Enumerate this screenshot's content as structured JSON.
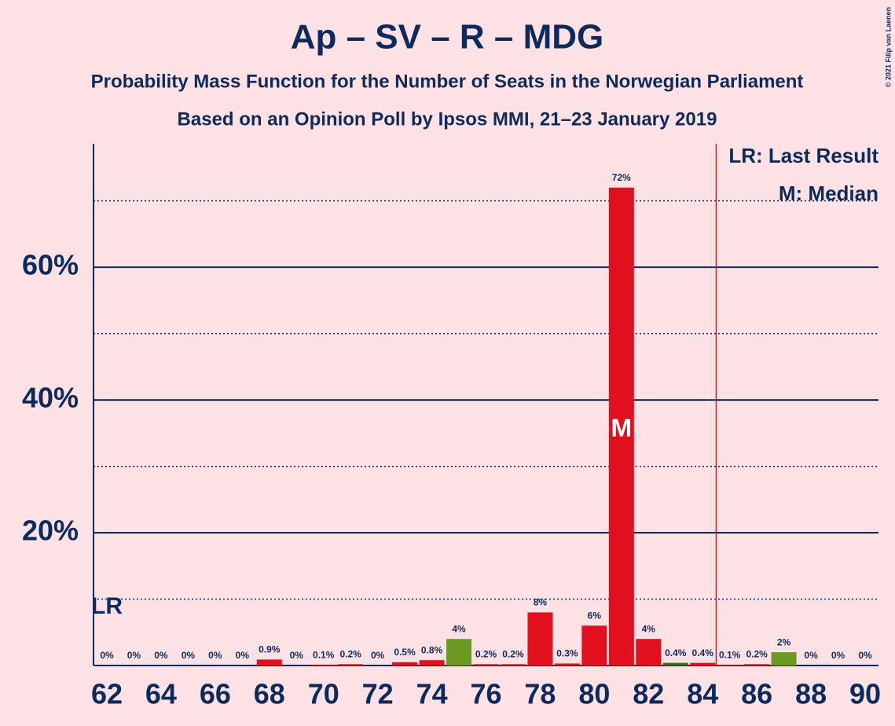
{
  "chart_data": {
    "type": "bar",
    "title": "Ap – SV – R – MDG",
    "subtitle": "Probability Mass Function for the Number of Seats in the Norwegian Parliament",
    "subtitle2": "Based on an Opinion Poll by Ipsos MMI, 21–23 January 2019",
    "copyright": "© 2021 Filip van Laenen",
    "categories": [
      62,
      null,
      64,
      null,
      66,
      null,
      68,
      null,
      70,
      null,
      72,
      null,
      74,
      null,
      76,
      null,
      78,
      null,
      80,
      null,
      82,
      null,
      84,
      null,
      86,
      null,
      88,
      null,
      90
    ],
    "values": [
      0,
      0,
      0,
      0,
      0,
      0,
      0.9,
      0,
      0.1,
      0.2,
      0,
      0.5,
      0.8,
      4,
      0.2,
      0.2,
      8,
      0.3,
      6,
      72,
      4,
      0.4,
      0.4,
      0.1,
      0.2,
      2,
      0,
      0,
      0
    ],
    "value_labels": [
      "0%",
      "0%",
      "0%",
      "0%",
      "0%",
      "0%",
      "0.9%",
      "0%",
      "0.1%",
      "0.2%",
      "0%",
      "0.5%",
      "0.8%",
      "4%",
      "0.2%",
      "0.2%",
      "8%",
      "0.3%",
      "6%",
      "72%",
      "4%",
      "0.4%",
      "0.4%",
      "0.1%",
      "0.2%",
      "2%",
      "0%",
      "0%",
      "0%"
    ],
    "colors": [
      "#e0101f",
      "#e0101f",
      "#e0101f",
      "#e0101f",
      "#e0101f",
      "#e0101f",
      "#e0101f",
      "#e0101f",
      "#e0101f",
      "#e0101f",
      "#e0101f",
      "#e0101f",
      "#e0101f",
      "#6a9a1f",
      "#e0101f",
      "#e0101f",
      "#e0101f",
      "#e0101f",
      "#e0101f",
      "#e0101f",
      "#e0101f",
      "#3f6a1a",
      "#e0101f",
      "#e0101f",
      "#e0101f",
      "#6a9a1f",
      "#e0101f",
      "#e0101f",
      "#e0101f"
    ],
    "ylim": [
      0,
      78.6
    ],
    "yticks": [
      {
        "value": 20,
        "label": "20%"
      },
      {
        "value": 40,
        "label": "40%"
      },
      {
        "value": 60,
        "label": "60%"
      }
    ],
    "minor_yticks": [
      10,
      30,
      50,
      70
    ],
    "grid": true,
    "last_result_index": 0,
    "last_result_label": "LR",
    "median_index": 19,
    "median_label": "M",
    "threshold_index": 22.5,
    "legend": [
      "LR: Last Result",
      "M: Median"
    ]
  }
}
